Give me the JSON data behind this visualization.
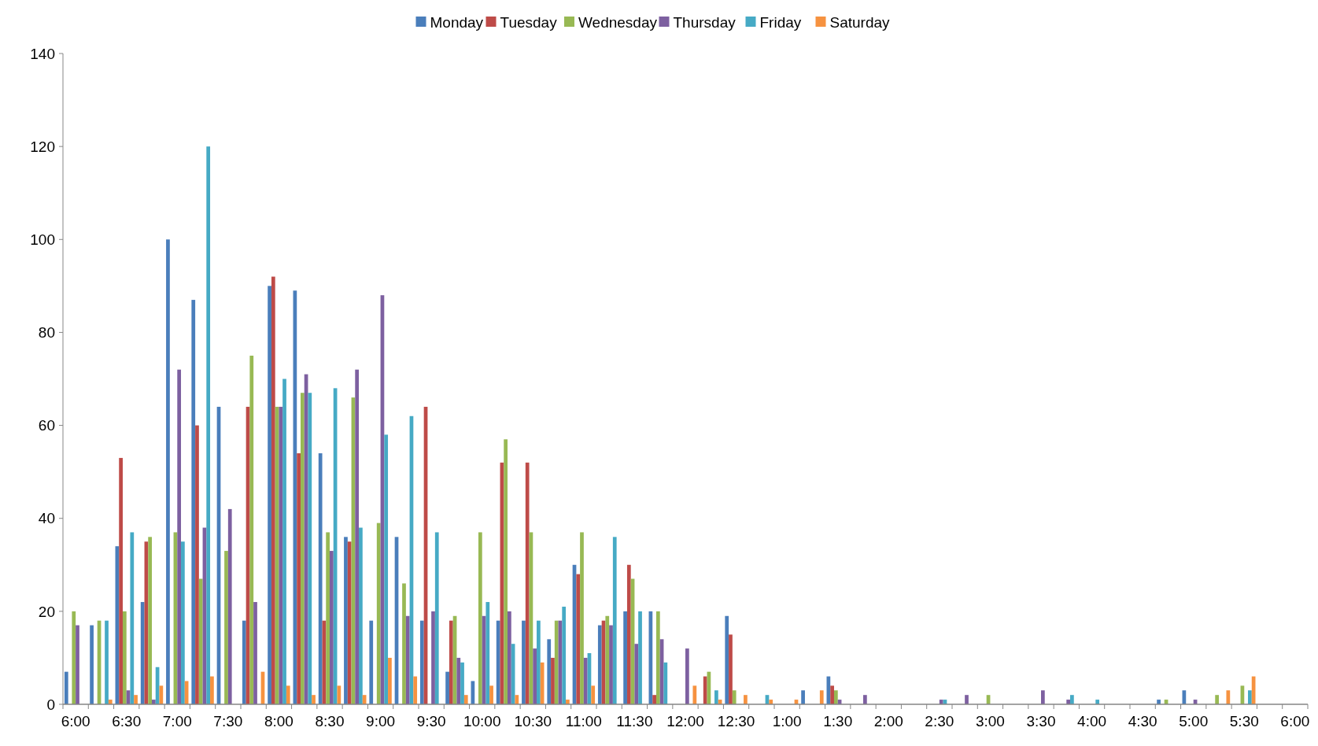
{
  "chart_data": {
    "type": "bar",
    "categories": [
      "6:00",
      null,
      "6:30",
      null,
      "7:00",
      null,
      "7:30",
      null,
      "8:00",
      null,
      "8:30",
      null,
      "9:00",
      null,
      "9:30",
      null,
      "10:00",
      null,
      "10:30",
      null,
      "11:00",
      null,
      "11:30",
      null,
      "12:00",
      null,
      "12:30",
      null,
      "1:00",
      null,
      "1:30",
      null,
      "2:00",
      null,
      "2:30",
      null,
      "3:00",
      null,
      "3:30",
      null,
      "4:00",
      null,
      "4:30",
      null,
      "5:00",
      null,
      "5:30",
      null,
      "6:00"
    ],
    "series": [
      {
        "name": "Monday",
        "color": "#4a7ebb",
        "values": [
          7,
          17,
          34,
          22,
          100,
          87,
          64,
          18,
          90,
          89,
          54,
          36,
          18,
          36,
          18,
          7,
          5,
          18,
          18,
          14,
          30,
          17,
          20,
          20,
          0,
          0,
          19,
          0,
          0,
          3,
          6,
          0,
          0,
          0,
          0,
          0,
          0,
          0,
          0,
          0,
          0,
          0,
          0,
          1,
          3,
          0,
          0,
          0,
          0
        ]
      },
      {
        "name": "Tuesday",
        "color": "#be4b48",
        "values": [
          0,
          0,
          53,
          35,
          0,
          60,
          0,
          64,
          92,
          54,
          18,
          35,
          0,
          0,
          64,
          18,
          0,
          52,
          52,
          10,
          28,
          18,
          30,
          2,
          0,
          6,
          15,
          0,
          0,
          0,
          4,
          0,
          0,
          0,
          0,
          0,
          0,
          0,
          0,
          0,
          0,
          0,
          0,
          0,
          0,
          0,
          0,
          0,
          0
        ]
      },
      {
        "name": "Wednesday",
        "color": "#98b954",
        "values": [
          20,
          18,
          20,
          36,
          37,
          27,
          33,
          75,
          64,
          67,
          37,
          66,
          39,
          26,
          0,
          19,
          37,
          57,
          37,
          18,
          37,
          19,
          27,
          20,
          0,
          7,
          3,
          0,
          0,
          0,
          3,
          0,
          0,
          0,
          0,
          0,
          2,
          0,
          0,
          0,
          0,
          0,
          0,
          1,
          0,
          2,
          4,
          0,
          0
        ]
      },
      {
        "name": "Thursday",
        "color": "#7d60a0",
        "values": [
          17,
          0,
          3,
          1,
          72,
          38,
          42,
          22,
          64,
          71,
          33,
          72,
          88,
          19,
          20,
          10,
          19,
          20,
          12,
          18,
          10,
          17,
          13,
          14,
          12,
          0,
          0,
          0,
          0,
          0,
          1,
          2,
          0,
          0,
          1,
          2,
          0,
          0,
          3,
          1,
          0,
          0,
          0,
          0,
          1,
          0,
          0,
          0,
          0
        ]
      },
      {
        "name": "Friday",
        "color": "#46aac5",
        "values": [
          0,
          18,
          37,
          8,
          35,
          120,
          0,
          0,
          70,
          67,
          68,
          38,
          58,
          62,
          37,
          9,
          22,
          13,
          18,
          21,
          11,
          36,
          20,
          9,
          0,
          3,
          0,
          2,
          0,
          0,
          0,
          0,
          0,
          0,
          1,
          0,
          0,
          0,
          0,
          2,
          1,
          0,
          0,
          0,
          0,
          0,
          3,
          0,
          0
        ]
      },
      {
        "name": "Saturday",
        "color": "#f69240",
        "values": [
          0,
          1,
          2,
          4,
          5,
          6,
          0,
          7,
          4,
          2,
          4,
          2,
          10,
          6,
          0,
          2,
          4,
          2,
          9,
          1,
          4,
          0,
          0,
          0,
          4,
          1,
          2,
          1,
          1,
          3,
          0,
          0,
          0,
          0,
          0,
          0,
          0,
          0,
          0,
          0,
          0,
          0,
          0,
          0,
          0,
          3,
          6,
          0,
          0
        ]
      }
    ],
    "ylim": [
      0,
      140
    ],
    "yticks": [
      0,
      20,
      40,
      60,
      80,
      100,
      120,
      140
    ],
    "grid": false,
    "legend": "top"
  }
}
